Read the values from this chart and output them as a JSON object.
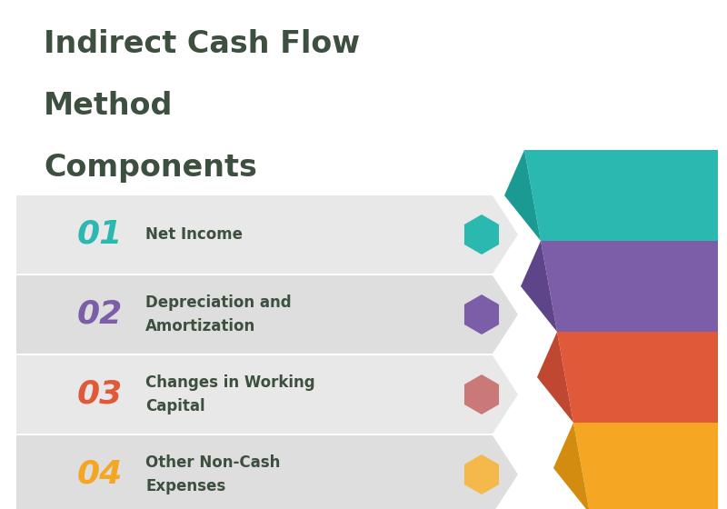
{
  "title_line1": "Indirect Cash Flow",
  "title_line2": "Method",
  "title_line3": "Components",
  "title_color": "#3d4f3e",
  "background_color": "#ffffff",
  "items": [
    {
      "number": "01",
      "label": "Net Income",
      "number_color": "#2bb8b0",
      "hex_color": "#2bb8b0",
      "funnel_main": "#2bb8b0",
      "funnel_dark": "#1a9a93",
      "row_bg": "#e8e8e8"
    },
    {
      "number": "02",
      "label": "Depreciation and\nAmortization",
      "number_color": "#7b5ea7",
      "hex_color": "#7b5ea7",
      "funnel_main": "#7b5ea7",
      "funnel_dark": "#5e4488",
      "row_bg": "#dedede"
    },
    {
      "number": "03",
      "label": "Changes in Working\nCapital",
      "number_color": "#e05a3a",
      "hex_color": "#c97a78",
      "funnel_main": "#e05a3a",
      "funnel_dark": "#c04830",
      "row_bg": "#e8e8e8"
    },
    {
      "number": "04",
      "label": "Other Non-Cash\nExpenses",
      "number_color": "#f5a623",
      "hex_color": "#f5b84a",
      "funnel_main": "#f5a623",
      "funnel_dark": "#d48c10",
      "row_bg": "#dedede"
    }
  ],
  "fig_w": 8.0,
  "fig_h": 5.6,
  "dpi": 100
}
